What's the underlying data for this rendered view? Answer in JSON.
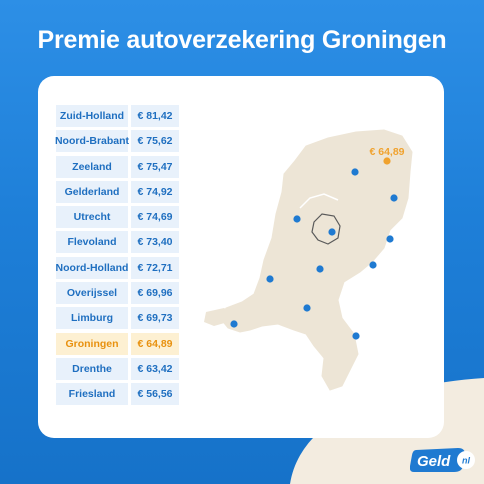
{
  "title": "Premie autoverzekering Groningen",
  "provinces": [
    {
      "name": "Zuid-Holland",
      "price": "€ 81,42"
    },
    {
      "name": "Noord-Brabant",
      "price": "€ 75,62"
    },
    {
      "name": "Zeeland",
      "price": "€ 75,47"
    },
    {
      "name": "Gelderland",
      "price": "€ 74,92"
    },
    {
      "name": "Utrecht",
      "price": "€ 74,69"
    },
    {
      "name": "Flevoland",
      "price": "€ 73,40"
    },
    {
      "name": "Noord-Holland",
      "price": "€ 72,71"
    },
    {
      "name": "Overijssel",
      "price": "€ 69,96"
    },
    {
      "name": "Limburg",
      "price": "€ 69,73"
    },
    {
      "name": "Groningen",
      "price": "€ 64,89",
      "highlight": true
    },
    {
      "name": "Drenthe",
      "price": "€ 63,42"
    },
    {
      "name": "Friesland",
      "price": "€ 56,56"
    }
  ],
  "map": {
    "highlight_label": "€ 64,89",
    "land_color": "#ede5d6",
    "dot_color": "#1f7ad1",
    "highlight_color": "#f0a22e"
  },
  "logo": {
    "text": "Geld",
    "suffix": "nl"
  },
  "colors": {
    "background": "#1e7fd8",
    "cell_bg": "#e8f1fb",
    "cell_text": "#1f6fc0",
    "highlight_bg": "#fdf0d2",
    "highlight_text": "#e8910f"
  }
}
